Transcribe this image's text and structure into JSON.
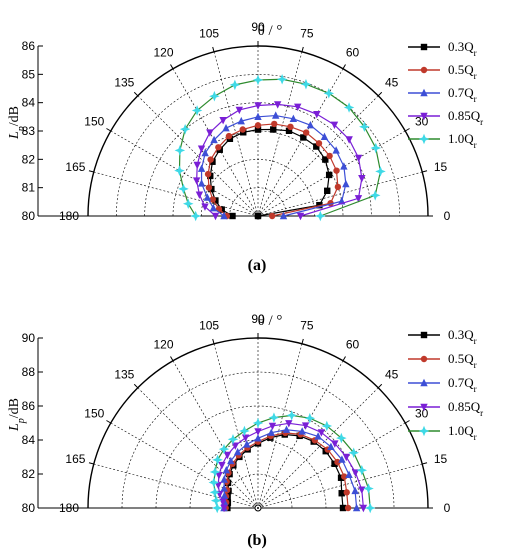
{
  "chart_data": [
    {
      "type": "polar-line",
      "panel_label": "(a)",
      "title": "θ / °",
      "ylabel": "L_p/dB",
      "ylabel_main": "L",
      "ylabel_sub": "p",
      "ylabel_unit": "/dB",
      "radial_range": [
        80,
        86
      ],
      "radial_ticks": [
        "80",
        "81",
        "82",
        "83",
        "84",
        "85",
        "86"
      ],
      "angle_ticks": [
        "0",
        "15",
        "30",
        "45",
        "60",
        "75",
        "90",
        "105",
        "120",
        "135",
        "150",
        "165",
        "180"
      ],
      "legend_position": "right",
      "angles_deg": [
        0,
        10,
        20,
        30,
        40,
        50,
        60,
        70,
        80,
        90,
        100,
        110,
        120,
        130,
        140,
        150,
        160,
        170,
        180
      ],
      "series": [
        {
          "name": "0.3Q",
          "name_main": "0.3Q",
          "name_sub": "r",
          "color": "#000000",
          "marker": "square",
          "values": [
            80.0,
            82.2,
            82.6,
            82.9,
            83.1,
            83.2,
            83.2,
            83.2,
            83.1,
            83.05,
            83.0,
            82.9,
            82.7,
            82.5,
            82.2,
            81.9,
            81.6,
            81.3,
            80.9
          ]
        },
        {
          "name": "0.5Q",
          "name_main": "0.5Q",
          "name_sub": "r",
          "color": "#c0392b",
          "marker": "circle",
          "values": [
            80.5,
            82.6,
            83.0,
            83.2,
            83.3,
            83.35,
            83.4,
            83.35,
            83.3,
            83.2,
            83.1,
            83.0,
            82.8,
            82.6,
            82.3,
            82.0,
            81.7,
            81.4,
            81.1
          ]
        },
        {
          "name": "0.7Q",
          "name_main": "0.7Q",
          "name_sub": "r",
          "color": "#3d4fd6",
          "marker": "triangle-up",
          "values": [
            80.9,
            83.0,
            83.3,
            83.5,
            83.6,
            83.65,
            83.7,
            83.65,
            83.6,
            83.5,
            83.4,
            83.3,
            83.1,
            82.9,
            82.6,
            82.3,
            81.9,
            81.6,
            81.2
          ]
        },
        {
          "name": "0.85Q",
          "name_main": "0.85Q",
          "name_sub": "r",
          "color": "#7a1fd6",
          "marker": "triangle-down",
          "values": [
            81.5,
            83.6,
            83.9,
            84.1,
            84.2,
            84.2,
            84.15,
            84.1,
            84.0,
            83.9,
            83.8,
            83.6,
            83.4,
            83.1,
            82.8,
            82.5,
            82.2,
            81.9,
            81.5
          ]
        },
        {
          "name": "1.0Q",
          "name_main": "1.0Q",
          "name_sub": "r",
          "color": "#2e8b2e",
          "marker": "star",
          "values": [
            82.2,
            84.2,
            84.6,
            84.8,
            84.9,
            85.0,
            85.0,
            84.95,
            84.9,
            84.8,
            84.7,
            84.5,
            84.3,
            84.0,
            83.6,
            83.2,
            82.8,
            82.5,
            82.2
          ]
        }
      ]
    },
    {
      "type": "polar-line",
      "panel_label": "(b)",
      "title": "θ / °",
      "ylabel": "L_p/dB",
      "ylabel_main": "L",
      "ylabel_sub": "p",
      "ylabel_unit": "/dB",
      "radial_range": [
        80,
        90
      ],
      "radial_ticks": [
        "80",
        "82",
        "84",
        "86",
        "88",
        "90"
      ],
      "angle_ticks": [
        "0",
        "15",
        "30",
        "45",
        "60",
        "75",
        "90",
        "105",
        "120",
        "135",
        "150",
        "165",
        "180"
      ],
      "legend_position": "right",
      "angles_deg": [
        0,
        10,
        20,
        30,
        40,
        50,
        60,
        70,
        80,
        90,
        100,
        110,
        120,
        130,
        140,
        150,
        160,
        170,
        180
      ],
      "series": [
        {
          "name": "0.3Q",
          "name_main": "0.3Q",
          "name_sub": "r",
          "color": "#000000",
          "marker": "square",
          "values": [
            85.0,
            85.0,
            85.2,
            85.2,
            85.2,
            85.1,
            84.9,
            84.6,
            84.2,
            83.8,
            83.5,
            83.2,
            82.9,
            82.6,
            82.3,
            82.0,
            81.9,
            81.8,
            81.8
          ]
        },
        {
          "name": "0.5Q",
          "name_main": "0.5Q",
          "name_sub": "r",
          "color": "#c0392b",
          "marker": "circle",
          "values": [
            85.3,
            85.3,
            85.4,
            85.4,
            85.35,
            85.2,
            85.0,
            84.7,
            84.3,
            83.9,
            83.6,
            83.3,
            83.0,
            82.7,
            82.4,
            82.1,
            82.0,
            81.9,
            81.9
          ]
        },
        {
          "name": "0.7Q",
          "name_main": "0.7Q",
          "name_sub": "r",
          "color": "#3d4fd6",
          "marker": "triangle-up",
          "values": [
            85.8,
            85.8,
            85.7,
            85.7,
            85.6,
            85.5,
            85.2,
            84.9,
            84.5,
            84.1,
            83.8,
            83.5,
            83.2,
            82.9,
            82.6,
            82.3,
            82.1,
            82.0,
            82.0
          ]
        },
        {
          "name": "0.85Q",
          "name_main": "0.85Q",
          "name_sub": "r",
          "color": "#7a1fd6",
          "marker": "triangle-down",
          "values": [
            86.2,
            86.2,
            86.1,
            86.0,
            85.9,
            85.8,
            85.6,
            85.3,
            84.9,
            84.5,
            84.2,
            83.9,
            83.6,
            83.3,
            83.0,
            82.7,
            82.4,
            82.1,
            82.0
          ]
        },
        {
          "name": "1.0Q",
          "name_main": "1.0Q",
          "name_sub": "r",
          "color": "#2e8b2e",
          "marker": "star",
          "values": [
            86.6,
            86.6,
            86.5,
            86.5,
            86.4,
            86.3,
            86.1,
            85.8,
            85.4,
            85.0,
            84.6,
            84.3,
            84.0,
            83.7,
            83.3,
            83.0,
            82.7,
            82.5,
            82.4
          ]
        }
      ]
    }
  ]
}
